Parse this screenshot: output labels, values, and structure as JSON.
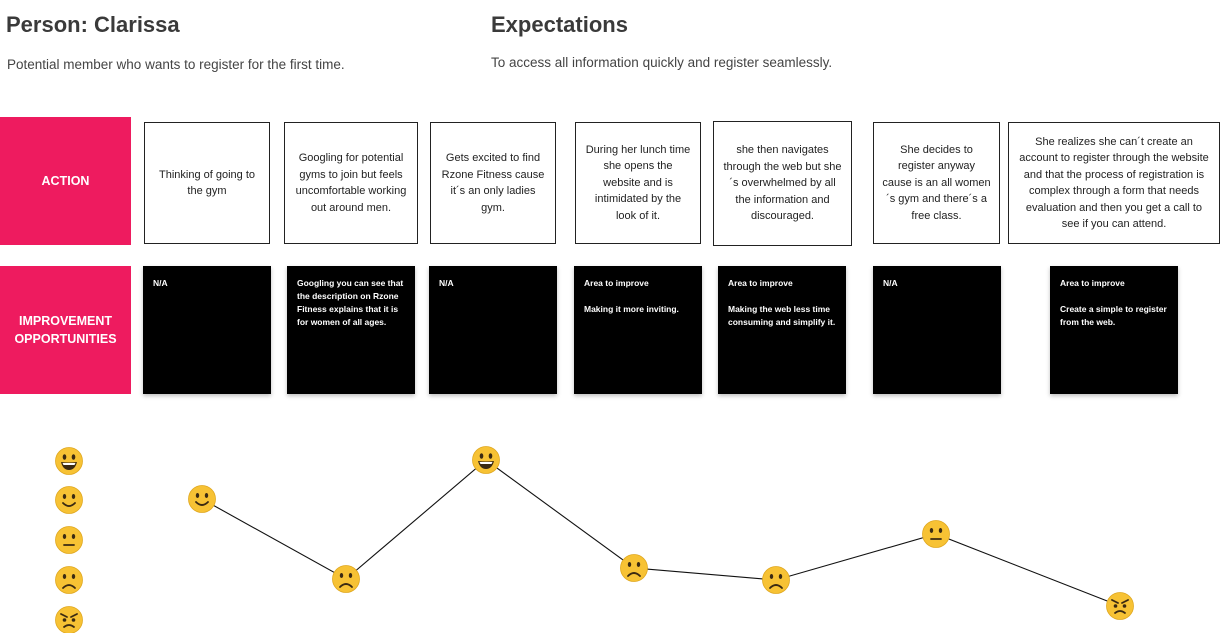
{
  "persona": {
    "title": "Person: Clarissa",
    "description": "Potential member who wants to register for the first time."
  },
  "expectations": {
    "title": "Expectations",
    "description": "To access all information quickly and register seamlessly."
  },
  "lanes": {
    "action_label": "ACTION",
    "improvement_label_line1": "IMPROVEMENT",
    "improvement_label_line2": "OPPORTUNITIES"
  },
  "actions": [
    "Thinking of going to the gym",
    "Googling for potential gyms to join but feels uncomfortable working out around men.",
    "Gets excited to find Rzone Fitness cause it´s an only ladies gym.",
    "During her lunch time she opens the website and is intimidated by the look of it.",
    "she then navigates through the web but she´s overwhelmed by all the information and discouraged.",
    "She decides to register anyway cause is an all women´s gym and there´s a free class.",
    "She realizes she can´t create an account to register through the website and that the process of registration is complex through a form that needs evaluation and then you get a call to see if you can attend."
  ],
  "improvements": [
    {
      "heading": "N/A",
      "body": ""
    },
    {
      "heading": "Googling you can see that the description on Rzone Fitness explains that it is for women of all ages.",
      "body": ""
    },
    {
      "heading": "N/A",
      "body": ""
    },
    {
      "heading": "Area to improve",
      "body": "Making it more inviting."
    },
    {
      "heading": "Area to improve",
      "body": "Making the web less time consuming and simplify it."
    },
    {
      "heading": "N/A",
      "body": ""
    },
    {
      "heading": "Area to improve",
      "body": "Create a simple to register from the web."
    }
  ],
  "emotion_scale": [
    "very-happy",
    "happy",
    "neutral",
    "sad",
    "angry"
  ],
  "journey_emotions": [
    "happy",
    "sad",
    "very-happy",
    "sad",
    "sad",
    "neutral",
    "angry"
  ],
  "colors": {
    "lane_label": "#ee1b5f",
    "emoji_face": "#f7c234",
    "improvement_card": "#000000"
  }
}
